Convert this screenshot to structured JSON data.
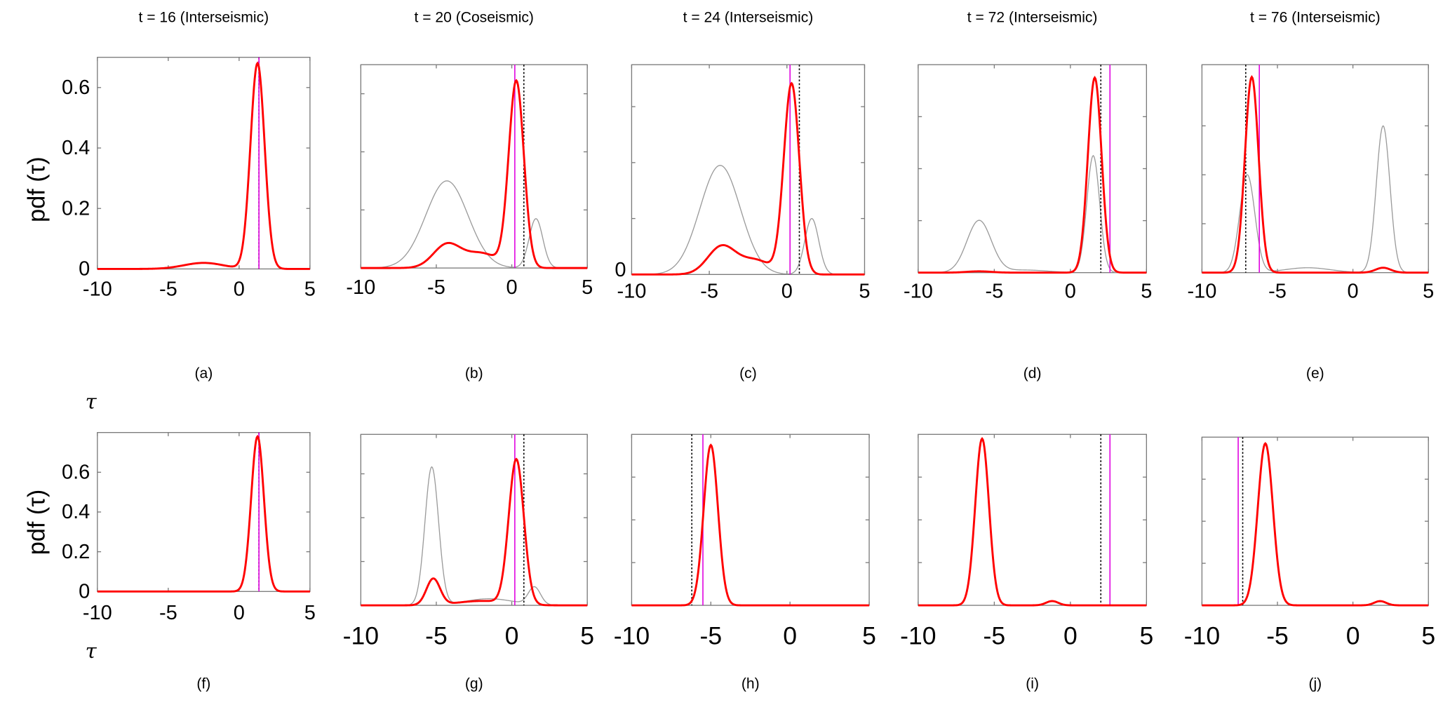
{
  "chart_data": {
    "type": "line",
    "ylabel": "pdf (τ)",
    "xlabel": "τ",
    "colors": {
      "posterior": "#ff0000",
      "prior": "#9a9a9a",
      "truth": "#e000e0",
      "estimate": "#000000"
    },
    "xlim": [
      -10,
      5
    ],
    "xticks": [
      "-10",
      "-5",
      "0",
      "5"
    ],
    "yticks": [
      "0",
      "0.2",
      "0.4",
      "0.6"
    ],
    "panels": [
      {
        "id": "a",
        "label": "(a)",
        "title": "t = 16 (Interseismic)",
        "ylim": [
          0,
          0.7
        ],
        "show_yticks": true,
        "red": [
          [
            1.3,
            0.5,
            0.68
          ],
          [
            -2.5,
            1.4,
            0.02
          ]
        ],
        "gray": [],
        "magenta": 1.4,
        "black": 1.4
      },
      {
        "id": "b",
        "label": "(b)",
        "title": "t = 20 (Coseismic)",
        "ylim": [
          0,
          0.7
        ],
        "red": [
          [
            0.3,
            0.5,
            0.64
          ],
          [
            -4.3,
            0.9,
            0.08
          ],
          [
            -2.0,
            1.1,
            0.05
          ]
        ],
        "gray": [
          [
            -4.3,
            1.4,
            0.3
          ],
          [
            1.6,
            0.45,
            0.17
          ]
        ],
        "magenta": 0.2,
        "black": 0.8
      },
      {
        "id": "c",
        "label": "(c)",
        "title": "t = 24 (Interseismic)",
        "ylim": [
          0,
          0.75
        ],
        "zero_label": "0",
        "red": [
          [
            0.3,
            0.5,
            0.68
          ],
          [
            -4.2,
            0.9,
            0.1
          ],
          [
            -2.0,
            1.0,
            0.05
          ]
        ],
        "gray": [
          [
            -4.3,
            1.3,
            0.39
          ],
          [
            1.6,
            0.45,
            0.2
          ]
        ],
        "magenta": 0.2,
        "black": 0.8
      },
      {
        "id": "d",
        "label": "(d)",
        "title": "t = 72 (Interseismic)",
        "ylim": [
          0,
          0.8
        ],
        "red": [
          [
            1.6,
            0.45,
            0.75
          ],
          [
            -6,
            0.8,
            0.005
          ]
        ],
        "gray": [
          [
            1.5,
            0.42,
            0.45
          ],
          [
            -6,
            0.8,
            0.2
          ],
          [
            -3,
            1.5,
            0.01
          ]
        ],
        "magenta": 2.6,
        "black": 2.0
      },
      {
        "id": "e",
        "label": "(e)",
        "title": "t = 76 (Interseismic)",
        "ylim": [
          0,
          0.85
        ],
        "red": [
          [
            -6.7,
            0.45,
            0.8
          ],
          [
            2,
            0.5,
            0.02
          ]
        ],
        "gray": [
          [
            -7,
            0.5,
            0.4
          ],
          [
            2,
            0.45,
            0.6
          ],
          [
            -3,
            1.5,
            0.02
          ]
        ],
        "magenta": -6.2,
        "black": -7.1
      },
      {
        "id": "f",
        "label": "(f)",
        "title": "",
        "ylim": [
          0,
          0.8
        ],
        "show_yticks": true,
        "red": [
          [
            1.3,
            0.45,
            0.78
          ]
        ],
        "gray": [],
        "magenta": 1.4,
        "black": 1.4
      },
      {
        "id": "g",
        "label": "(g)",
        "title": "",
        "ylim": [
          0,
          0.78
        ],
        "red": [
          [
            0.3,
            0.5,
            0.66
          ],
          [
            -5.2,
            0.45,
            0.12
          ],
          [
            -2.0,
            1.6,
            0.02
          ]
        ],
        "gray": [
          [
            -5.3,
            0.45,
            0.63
          ],
          [
            1.5,
            0.4,
            0.08
          ],
          [
            -1.5,
            1.6,
            0.03
          ]
        ],
        "magenta": 0.2,
        "black": 0.8
      },
      {
        "id": "h",
        "label": "(h)",
        "title": "",
        "ylim": [
          0,
          0.8
        ],
        "red": [
          [
            -5,
            0.45,
            0.75
          ]
        ],
        "gray": [],
        "magenta": -5.5,
        "black": -6.2
      },
      {
        "id": "i",
        "label": "(i)",
        "title": "",
        "ylim": [
          0,
          0.8
        ],
        "red": [
          [
            -5.8,
            0.45,
            0.78
          ],
          [
            -1.2,
            0.4,
            0.02
          ]
        ],
        "gray": [],
        "magenta": 2.6,
        "black": 2.0
      },
      {
        "id": "j",
        "label": "(j)",
        "title": "",
        "ylim": [
          0,
          0.8
        ],
        "red": [
          [
            -5.8,
            0.5,
            0.77
          ],
          [
            1.8,
            0.4,
            0.02
          ]
        ],
        "gray": [],
        "magenta": -7.6,
        "black": -7.3
      }
    ]
  }
}
